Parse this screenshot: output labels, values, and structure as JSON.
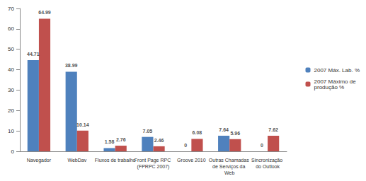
{
  "chart_data": {
    "type": "bar",
    "categories": [
      "Navegador",
      "WebDav",
      "Fluxos de trabalho",
      "Front Page RPC (FPRPC 2007)",
      "Groove 2010",
      "Outras Chamadas de Serviços da Web",
      "Sincronização do Outlook"
    ],
    "series": [
      {
        "name": "2007 Máx. Lab. %",
        "color": "#4f81bd",
        "values": [
          44.71,
          38.99,
          1.58,
          7.05,
          0,
          7.64,
          0
        ]
      },
      {
        "name": "2007 Máximo de produção %",
        "color": "#c0504d",
        "values": [
          64.99,
          10.14,
          2.76,
          2.46,
          6.08,
          5.96,
          7.62
        ]
      }
    ],
    "ylim": [
      0,
      70
    ],
    "yticks": [
      0,
      10,
      20,
      30,
      40,
      50,
      60,
      70
    ],
    "grid": false,
    "legend": "right",
    "data_labels": true
  }
}
